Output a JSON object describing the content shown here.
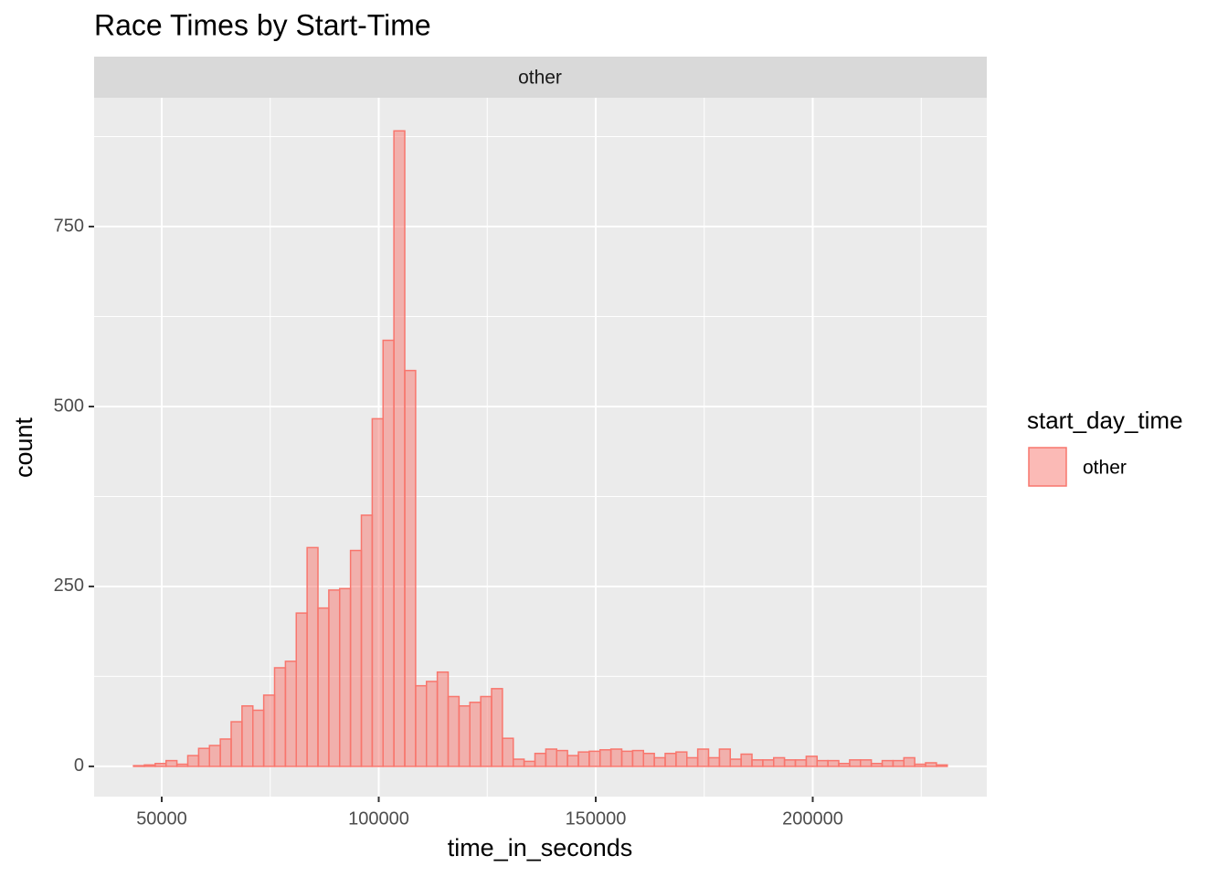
{
  "chart_data": {
    "type": "histogram",
    "title": "Race Times by Start-Time",
    "facet": "other",
    "x_label": "time_in_seconds",
    "y_label": "count",
    "legend_title": "start_day_time",
    "legend_position": "right",
    "series": [
      {
        "name": "other",
        "color": "#F8766D",
        "fill_opacity": 0.5,
        "values": [
          1,
          2,
          4,
          8,
          3,
          15,
          25,
          29,
          38,
          62,
          84,
          78,
          99,
          137,
          146,
          213,
          304,
          220,
          245,
          247,
          300,
          349,
          483,
          592,
          883,
          550,
          112,
          118,
          131,
          97,
          84,
          89,
          97,
          108,
          39,
          10,
          7,
          18,
          24,
          22,
          15,
          20,
          21,
          23,
          24,
          21,
          22,
          18,
          12,
          18,
          20,
          12,
          24,
          12,
          24,
          10,
          17,
          9,
          9,
          12,
          9,
          9,
          14,
          8,
          8,
          4,
          9,
          9,
          4,
          8,
          8,
          12,
          3,
          5,
          2
        ]
      }
    ],
    "bins": [
      43500,
      46000,
      48500,
      51000,
      53500,
      56000,
      58500,
      61000,
      63500,
      66000,
      68500,
      71000,
      73500,
      76000,
      78500,
      81000,
      83500,
      86000,
      88500,
      91000,
      93500,
      96000,
      98500,
      101000,
      103500,
      106000,
      108500,
      111000,
      113500,
      116000,
      118500,
      121000,
      123500,
      126000,
      128500,
      131000,
      133500,
      136000,
      138500,
      141000,
      143500,
      146000,
      148500,
      151000,
      153500,
      156000,
      158500,
      161000,
      163500,
      166000,
      168500,
      171000,
      173500,
      176000,
      178500,
      181000,
      183500,
      186000,
      188500,
      191000,
      193500,
      196000,
      198500,
      201000,
      203500,
      206000,
      208500,
      211000,
      213500,
      216000,
      218500,
      221000,
      223500,
      226000,
      228500,
      231000
    ],
    "xlim": [
      34421,
      240105
    ],
    "ylim": [
      -42,
      929
    ],
    "xticks": [
      50000,
      100000,
      150000,
      200000
    ],
    "yticks": [
      0,
      250,
      500,
      750
    ],
    "grid": true
  }
}
